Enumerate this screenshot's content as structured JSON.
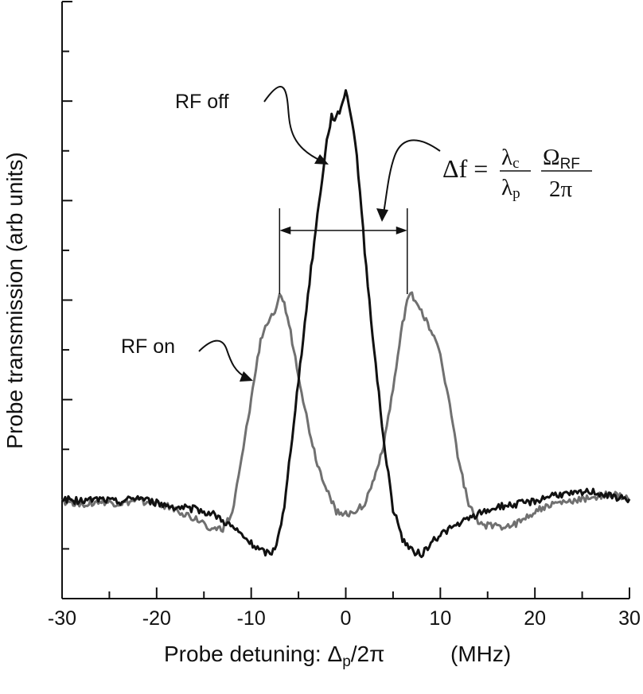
{
  "chart_data": {
    "type": "line",
    "xlabel": "Probe detuning: Δp/2π    (MHz)",
    "xlabel_main": "Probe detuning: Δ",
    "xlabel_sub": "p",
    "xlabel_rest": "/2π",
    "xlabel_unit": "(MHz)",
    "ylabel": "Probe transmission (arb units)",
    "xlim": [
      -30,
      30
    ],
    "ylim": [
      -1,
      5
    ],
    "x_ticks": [
      "-30",
      "-20",
      "-10",
      "0",
      "10",
      "20",
      "30"
    ],
    "x_tick_values": [
      -30,
      -20,
      -10,
      0,
      10,
      20,
      30
    ],
    "y_tick_values": [
      -0.5,
      0,
      0.5,
      1,
      1.5,
      2,
      2.5,
      3,
      3.5,
      4,
      4.5,
      5
    ],
    "series": [
      {
        "name": "RF off",
        "color": "#111111",
        "x": [
          -30,
          -28,
          -26,
          -24,
          -22,
          -20,
          -18,
          -16,
          -14,
          -12,
          -10,
          -9,
          -8,
          -7.5,
          -7,
          -6.5,
          -6,
          -5,
          -4,
          -3,
          -2,
          -1.5,
          -1,
          -0.5,
          0,
          0.5,
          1,
          1.5,
          2,
          3,
          4,
          5,
          6,
          7,
          8,
          9,
          10,
          12,
          14,
          16,
          18,
          20,
          22,
          24,
          26,
          28,
          30
        ],
        "y": [
          0.0,
          -0.02,
          0.0,
          -0.03,
          0.02,
          -0.04,
          -0.08,
          -0.1,
          -0.15,
          -0.28,
          -0.45,
          -0.52,
          -0.55,
          -0.5,
          -0.3,
          -0.1,
          0.35,
          1.2,
          2.05,
          2.85,
          3.6,
          3.85,
          3.82,
          3.95,
          4.1,
          3.9,
          3.6,
          3.1,
          2.5,
          1.5,
          0.6,
          -0.1,
          -0.4,
          -0.52,
          -0.55,
          -0.45,
          -0.35,
          -0.25,
          -0.15,
          -0.08,
          -0.05,
          -0.02,
          0.05,
          0.05,
          0.08,
          0.03,
          0.0
        ]
      },
      {
        "name": "RF on",
        "color": "#707070",
        "x": [
          -30,
          -28,
          -26,
          -24,
          -22,
          -20,
          -18,
          -16,
          -14,
          -13,
          -12,
          -11,
          -10,
          -9,
          -8,
          -7.5,
          -7,
          -6.5,
          -6,
          -5,
          -4,
          -3,
          -2,
          -1,
          0,
          1,
          2,
          3,
          4,
          5,
          6,
          6.5,
          7,
          8,
          9,
          10,
          11,
          12,
          13,
          14,
          16,
          18,
          20,
          22,
          24,
          26,
          28,
          30
        ],
        "y": [
          -0.02,
          -0.05,
          -0.03,
          -0.05,
          -0.02,
          -0.04,
          -0.1,
          -0.2,
          -0.3,
          -0.3,
          -0.15,
          0.4,
          1.0,
          1.6,
          1.85,
          1.9,
          2.08,
          1.95,
          1.75,
          1.25,
          0.75,
          0.35,
          0.1,
          -0.12,
          -0.15,
          -0.12,
          -0.05,
          0.2,
          0.55,
          1.1,
          1.75,
          2.0,
          2.05,
          1.9,
          1.7,
          1.45,
          0.95,
          0.35,
          -0.05,
          -0.25,
          -0.28,
          -0.25,
          -0.12,
          -0.05,
          -0.02,
          0.02,
          0.05,
          0.0
        ]
      }
    ],
    "annotations": {
      "rf_off_label": "RF off",
      "rf_on_label": "RF on",
      "splitting_arrow_x": [
        -7,
        6.5
      ],
      "splitting_arrow_y": 2.7,
      "formula": {
        "lhs": "Δf =",
        "lambda": "λ",
        "sub_c": "c",
        "sub_p": "p",
        "omega": "Ω",
        "sub_rf": "RF",
        "two_pi": "2π"
      }
    }
  }
}
